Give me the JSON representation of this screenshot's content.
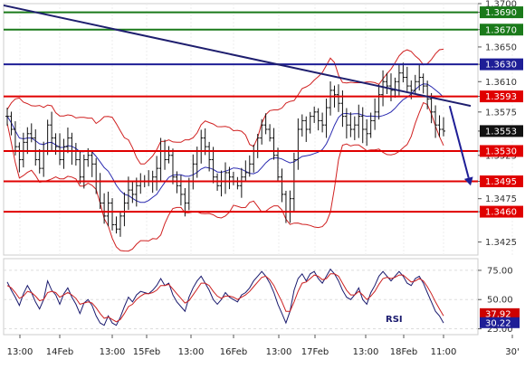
{
  "chart_data": [
    {
      "type": "candlestick",
      "title": "",
      "x_ticks": [
        "13:00",
        "14Feb",
        "13:00",
        "15Feb",
        "13:00",
        "16Feb",
        "13:00",
        "17Feb",
        "13:00",
        "18Feb",
        "11:00",
        "30'"
      ],
      "y_ticks": [
        "1.3700",
        "1.3690",
        "1.3670",
        "1.3650",
        "1.3630",
        "1.3610",
        "1.3593",
        "1.3575",
        "1.3553",
        "1.3530",
        "1.3525",
        "1.3495",
        "1.3475",
        "1.3460",
        "1.3425"
      ],
      "ylim": [
        1.341,
        1.37
      ],
      "horizontal_levels": [
        {
          "label": "1.3690",
          "value": 1.369,
          "color": "#1a7a1a"
        },
        {
          "label": "1.3670",
          "value": 1.367,
          "color": "#1a7a1a"
        },
        {
          "label": "1.3630",
          "value": 1.363,
          "color": "#1e1e96"
        },
        {
          "label": "1.3593",
          "value": 1.3593,
          "color": "#e00000"
        },
        {
          "label": "1.3530",
          "value": 1.353,
          "color": "#e00000"
        },
        {
          "label": "1.3495",
          "value": 1.3495,
          "color": "#e00000"
        },
        {
          "label": "1.3460",
          "value": 1.346,
          "color": "#e00000"
        }
      ],
      "current_price": {
        "label": "1.3553",
        "value": 1.3553
      },
      "trendline": {
        "from": {
          "x": 0,
          "y": 1.3698
        },
        "to": {
          "x": 1,
          "y": 1.3582
        },
        "color": "#1e1e6e"
      },
      "close_series": [
        1.357,
        1.3555,
        1.3535,
        1.352,
        1.354,
        1.355,
        1.3545,
        1.352,
        1.351,
        1.353,
        1.356,
        1.3545,
        1.3535,
        1.352,
        1.3535,
        1.3545,
        1.353,
        1.352,
        1.35,
        1.352,
        1.3525,
        1.3515,
        1.3495,
        1.347,
        1.3455,
        1.347,
        1.3445,
        1.344,
        1.3455,
        1.347,
        1.3485,
        1.348,
        1.349,
        1.3495,
        1.3495,
        1.3495,
        1.35,
        1.351,
        1.353,
        1.352,
        1.3525,
        1.35,
        1.349,
        1.348,
        1.347,
        1.3495,
        1.3515,
        1.353,
        1.3545,
        1.3535,
        1.352,
        1.35,
        1.349,
        1.3495,
        1.3505,
        1.35,
        1.3495,
        1.349,
        1.35,
        1.3505,
        1.3515,
        1.353,
        1.3545,
        1.356,
        1.3555,
        1.3545,
        1.3525,
        1.35,
        1.348,
        1.346,
        1.3475,
        1.352,
        1.3555,
        1.3565,
        1.3555,
        1.357,
        1.3575,
        1.3565,
        1.356,
        1.358,
        1.36,
        1.3595,
        1.3585,
        1.357,
        1.356,
        1.3555,
        1.356,
        1.357,
        1.3555,
        1.355,
        1.3565,
        1.3575,
        1.3595,
        1.361,
        1.3605,
        1.36,
        1.361,
        1.362,
        1.3615,
        1.3605,
        1.36,
        1.361,
        1.3615,
        1.3605,
        1.359,
        1.3575,
        1.356,
        1.3555,
        1.3553
      ],
      "forecast_arrow": {
        "from": {
          "x": 0.955,
          "y": 1.3582
        },
        "to": {
          "x": 1.0,
          "y": 1.349
        },
        "color": "#1e1e96"
      }
    },
    {
      "type": "line",
      "title": "RSI",
      "y_ticks": [
        "75.00",
        "50.00",
        "25.00"
      ],
      "ylim": [
        20,
        85
      ],
      "current_values": [
        {
          "label": "37.92",
          "value": 37.92,
          "color": "#cc0000"
        },
        {
          "label": "30.22",
          "value": 30.22,
          "color": "#1e1e96"
        }
      ],
      "series": [
        {
          "values": [
            65,
            58,
            52,
            45,
            55,
            62,
            56,
            48,
            42,
            50,
            66,
            58,
            54,
            46,
            55,
            60,
            52,
            46,
            38,
            47,
            50,
            45,
            36,
            30,
            28,
            36,
            30,
            28,
            35,
            44,
            52,
            48,
            54,
            57,
            56,
            55,
            58,
            62,
            68,
            62,
            64,
            54,
            48,
            44,
            40,
            52,
            60,
            66,
            70,
            64,
            58,
            50,
            46,
            50,
            56,
            52,
            50,
            48,
            54,
            56,
            60,
            66,
            70,
            74,
            70,
            64,
            56,
            46,
            38,
            30,
            40,
            58,
            68,
            72,
            66,
            72,
            74,
            68,
            64,
            70,
            76,
            72,
            66,
            58,
            52,
            50,
            54,
            60,
            50,
            46,
            56,
            62,
            70,
            74,
            70,
            66,
            70,
            74,
            70,
            64,
            62,
            68,
            70,
            64,
            56,
            48,
            40,
            36,
            30
          ]
        },
        {
          "values": [
            62,
            60,
            56,
            51,
            53,
            57,
            56,
            53,
            49,
            50,
            56,
            57,
            56,
            52,
            54,
            56,
            54,
            51,
            46,
            47,
            48,
            47,
            43,
            38,
            34,
            35,
            33,
            31,
            33,
            38,
            44,
            46,
            50,
            53,
            55,
            55,
            56,
            58,
            62,
            62,
            63,
            59,
            55,
            51,
            47,
            49,
            54,
            59,
            64,
            64,
            62,
            57,
            53,
            51,
            53,
            53,
            52,
            50,
            52,
            54,
            57,
            61,
            65,
            69,
            70,
            67,
            62,
            55,
            48,
            40,
            40,
            48,
            57,
            64,
            65,
            68,
            71,
            70,
            67,
            68,
            72,
            72,
            70,
            64,
            58,
            54,
            54,
            57,
            54,
            50,
            53,
            57,
            63,
            68,
            69,
            68,
            69,
            71,
            71,
            68,
            65,
            66,
            68,
            66,
            61,
            55,
            48,
            42,
            36
          ]
        }
      ]
    }
  ]
}
